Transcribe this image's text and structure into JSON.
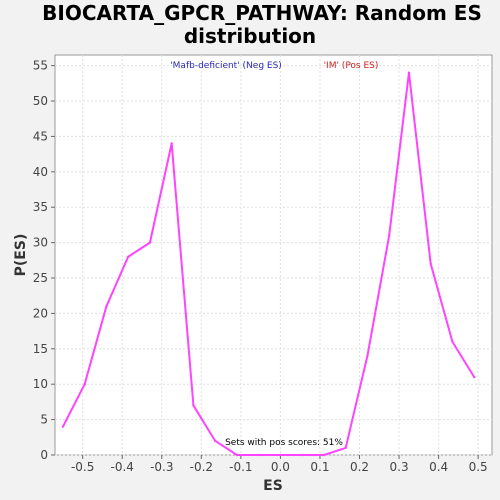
{
  "chart_data": {
    "type": "line",
    "title_line1": "BIOCARTA_GPCR_PATHWAY: Random ES",
    "title_line2": "distribution",
    "xlabel": "ES",
    "ylabel": "P(ES)",
    "xlim": [
      -0.57,
      0.535
    ],
    "ylim": [
      0,
      56.5
    ],
    "x_ticks": [
      -0.5,
      -0.4,
      -0.3,
      -0.2,
      -0.1,
      0.0,
      0.1,
      0.2,
      0.3,
      0.4,
      0.5
    ],
    "x_tick_labels": [
      "-0.5",
      "-0.4",
      "-0.3",
      "-0.2",
      "-0.1",
      "0.0",
      "0.1",
      "0.2",
      "0.3",
      "0.4",
      "0.5"
    ],
    "y_ticks": [
      0,
      5,
      10,
      15,
      20,
      25,
      30,
      35,
      40,
      45,
      50,
      55
    ],
    "y_tick_labels": [
      "0",
      "5",
      "10",
      "15",
      "20",
      "25",
      "30",
      "35",
      "40",
      "45",
      "50",
      "55"
    ],
    "grid": true,
    "series": [
      {
        "color": "#ff44ff",
        "x": [
          -0.55,
          -0.495,
          -0.44,
          -0.385,
          -0.33,
          -0.275,
          -0.22,
          -0.165,
          -0.11,
          -0.055,
          0.0,
          0.055,
          0.11,
          0.165,
          0.22,
          0.275,
          0.325,
          0.38,
          0.435,
          0.49
        ],
        "y": [
          4,
          10,
          21,
          28,
          30,
          44,
          7,
          2,
          0,
          0,
          0,
          0,
          0,
          1,
          14,
          31,
          54,
          27,
          16,
          11
        ]
      }
    ],
    "legend": [
      {
        "label": "'Mafb-deficient' (Neg ES)",
        "color": "#2a2ab8"
      },
      {
        "label": "'IM' (Pos ES)",
        "color": "#d42020"
      }
    ],
    "annotation": "Sets with pos scores: 51%"
  }
}
